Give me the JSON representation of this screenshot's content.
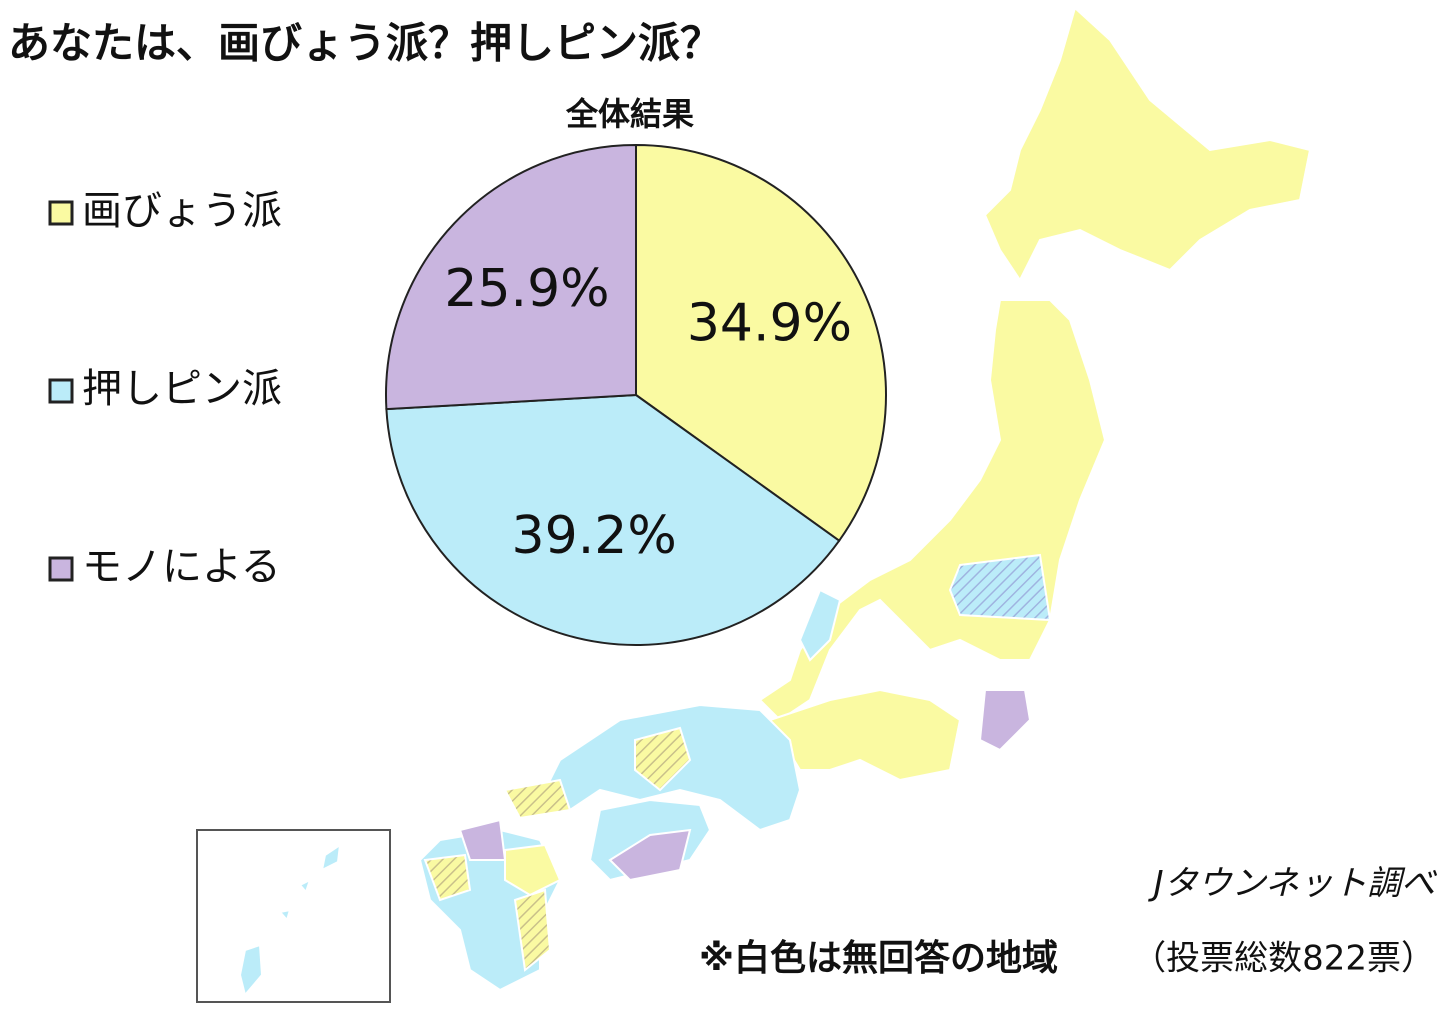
{
  "chart_data": {
    "type": "pie",
    "title": "あなたは、画びょう派？押しピン派？",
    "subtitle": "全体結果",
    "series": [
      {
        "name": "画びょう派",
        "color": "#fafaa2",
        "values": [
          34.9
        ],
        "value_labels": [
          "34.9%"
        ]
      },
      {
        "name": "押しピン派",
        "color": "#bbecf9",
        "values": [
          39.2
        ],
        "value_labels": [
          "39.2%"
        ]
      },
      {
        "name": "モノによる",
        "color": "#c9b5df",
        "values": [
          25.9
        ],
        "value_labels": [
          "25.9%"
        ]
      }
    ],
    "annotations": [
      "※白色は無回答の地域",
      "Jタウンネット調べ",
      "（投票総数822票）"
    ]
  }
}
